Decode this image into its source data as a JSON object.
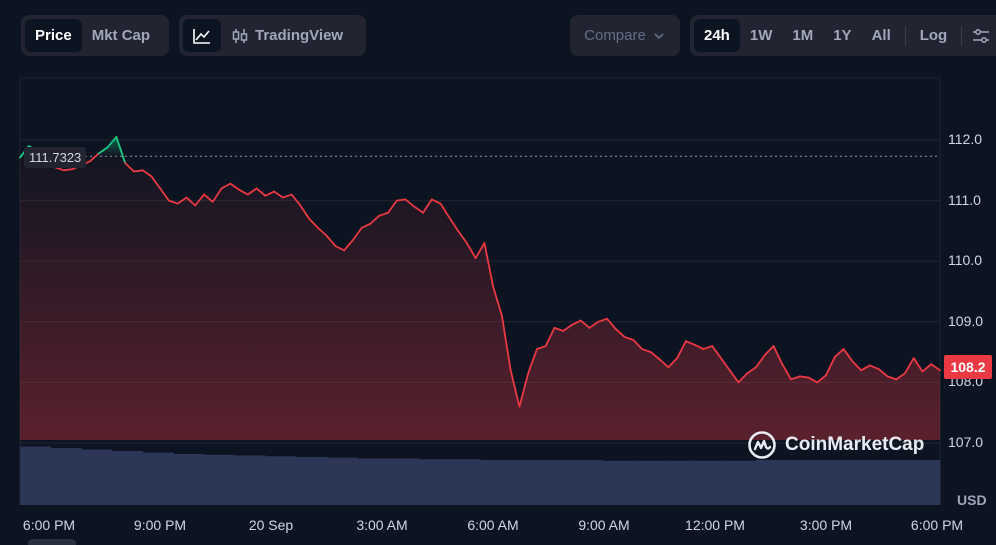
{
  "toolbar": {
    "price_label": "Price",
    "mktcap_label": "Mkt Cap",
    "tradingview_label": "TradingView",
    "compare_label": "Compare",
    "ranges": [
      "24h",
      "1W",
      "1M",
      "1Y",
      "All"
    ],
    "active_range": "24h",
    "log_label": "Log"
  },
  "chart": {
    "reference_price": "111.7323",
    "last_price": "108.2",
    "currency": "USD",
    "brand": "CoinMarketCap",
    "colors": {
      "up": "#16c784",
      "down": "#ea3943",
      "volume": "#2c3656"
    }
  },
  "chart_data": {
    "type": "line",
    "x_tick_labels": [
      "6:00 PM",
      "9:00 PM",
      "20 Sep",
      "3:00 AM",
      "6:00 AM",
      "9:00 AM",
      "12:00 PM",
      "3:00 PM",
      "6:00 PM"
    ],
    "y_tick_labels": [
      "112.0",
      "111.0",
      "110.0",
      "109.0",
      "108.0",
      "107.0"
    ],
    "ylim": [
      106.9,
      112.95
    ],
    "grid": true,
    "reference_line": 111.7323,
    "series": [
      {
        "values": [
          111.71,
          111.9,
          111.82,
          111.62,
          111.55,
          111.5,
          111.52,
          111.58,
          111.65,
          111.78,
          111.88,
          112.05,
          111.62,
          111.48,
          111.5,
          111.4,
          111.2,
          111.0,
          110.95,
          111.05,
          110.92,
          111.1,
          110.98,
          111.2,
          111.28,
          111.18,
          111.1,
          111.2,
          111.08,
          111.15,
          111.05,
          111.1,
          110.92,
          110.7,
          110.55,
          110.42,
          110.25,
          110.18,
          110.35,
          110.55,
          110.62,
          110.75,
          110.8,
          111.0,
          111.02,
          110.9,
          110.8,
          111.02,
          110.95,
          110.72,
          110.5,
          110.3,
          110.05,
          110.3,
          109.58,
          109.1,
          108.2,
          107.6,
          108.15,
          108.55,
          108.6,
          108.9,
          108.85,
          108.95,
          109.02,
          108.9,
          109.0,
          109.05,
          108.88,
          108.75,
          108.7,
          108.55,
          108.5,
          108.38,
          108.25,
          108.4,
          108.68,
          108.62,
          108.55,
          108.6,
          108.4,
          108.2,
          108.0,
          108.15,
          108.25,
          108.45,
          108.6,
          108.3,
          108.05,
          108.1,
          108.08,
          108.0,
          108.12,
          108.42,
          108.55,
          108.35,
          108.2,
          108.28,
          108.22,
          108.1,
          108.05,
          108.15,
          108.4,
          108.18,
          108.3,
          108.2
        ],
        "color": "#ea3943"
      }
    ],
    "volume_profile": [
      0.78,
      0.76,
      0.74,
      0.72,
      0.7,
      0.68,
      0.67,
      0.66,
      0.65,
      0.64,
      0.63,
      0.62,
      0.62,
      0.61,
      0.61,
      0.6,
      0.6,
      0.6,
      0.6,
      0.59,
      0.59,
      0.59,
      0.59,
      0.59,
      0.6,
      0.6,
      0.6,
      0.6,
      0.6,
      0.6
    ]
  }
}
